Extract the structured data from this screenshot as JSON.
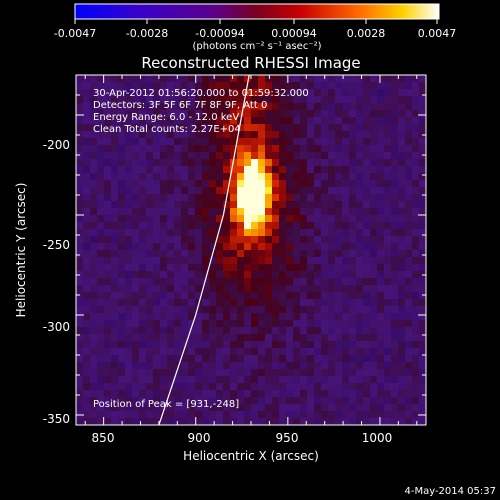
{
  "colorbar": {
    "ticks": [
      "-0.0047",
      "-0.0028",
      "-0.00094",
      "0.00094",
      "0.0028",
      "0.0047"
    ],
    "unit_label": "(photons cm⁻² s⁻¹ asec⁻²)"
  },
  "chart_data": {
    "type": "heatmap",
    "title": "Reconstructed RHESSI Image",
    "xlabel": "Heliocentric X (arcsec)",
    "ylabel": "Heliocentric Y (arcsec)",
    "xlim": [
      835,
      1025
    ],
    "ylim": [
      -355,
      -180
    ],
    "xticks": [
      850,
      900,
      950,
      1000
    ],
    "yticks": [
      -200,
      -250,
      -300,
      -350
    ],
    "colorbar_range": [
      -0.0047,
      0.0047
    ],
    "colormap": "blue-purple-red-yellow-white",
    "peak": {
      "x": 931,
      "y": -248
    },
    "limb_curve": [
      [
        880,
        -355
      ],
      [
        900,
        -300
      ],
      [
        915,
        -250
      ],
      [
        925,
        -200
      ],
      [
        935,
        -150
      ]
    ],
    "annotations": [
      "30-Apr-2012 01:56:20.000 to 01:59:32.000",
      "Detectors: 3F 5F 6F 7F 8F 9F, Att 0",
      "Energy Range: 6.0 - 12.0 keV",
      "Clean    Total counts: 2.27E+04"
    ],
    "peak_label": "Position of Peak = [931,-248]",
    "timestamp": "4-May-2014 05:37"
  }
}
